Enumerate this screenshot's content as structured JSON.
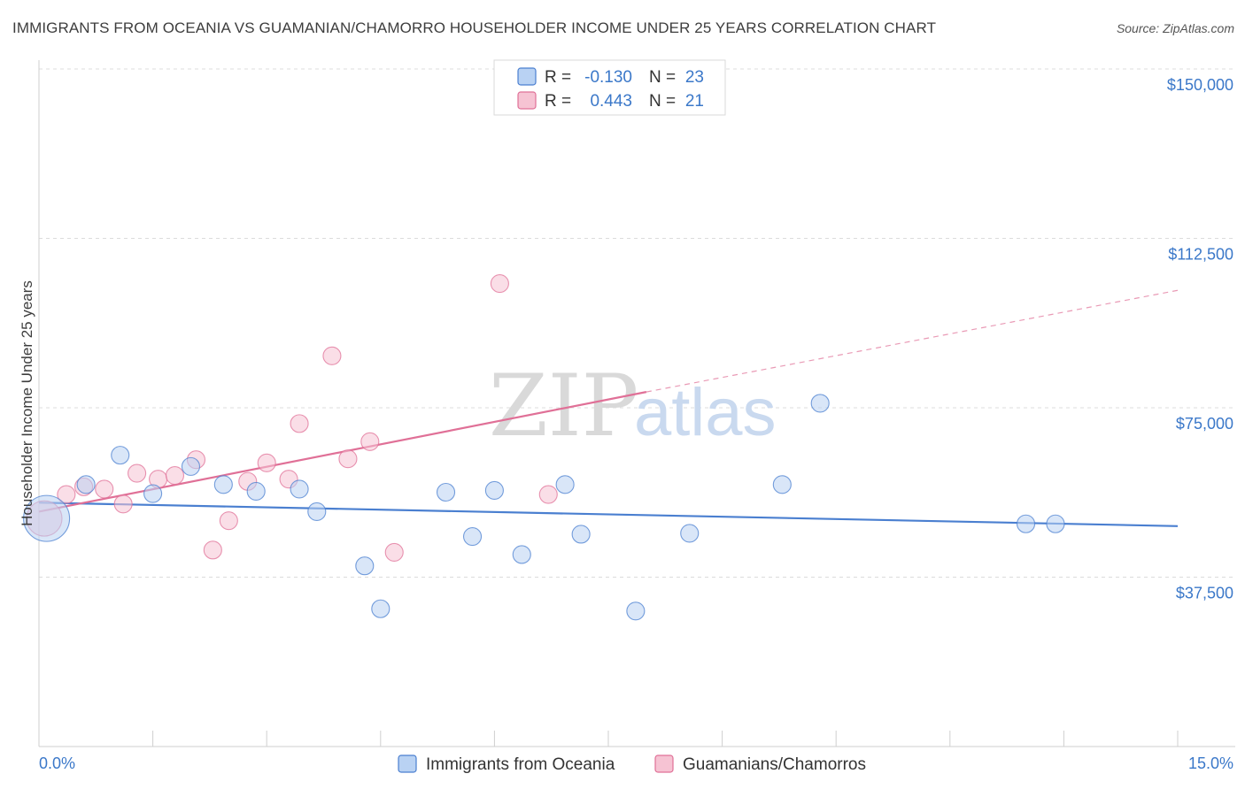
{
  "title": "IMMIGRANTS FROM OCEANIA VS GUAMANIAN/CHAMORRO HOUSEHOLDER INCOME UNDER 25 YEARS CORRELATION CHART",
  "source": "Source: ZipAtlas.com",
  "watermark": {
    "part1": "ZIP",
    "part2": "atlas"
  },
  "legend": {
    "rows": [
      {
        "r_label": "R =",
        "r_value": "-0.130",
        "n_label": "N =",
        "n_value": "23"
      },
      {
        "r_label": "R =",
        "r_value": "0.443",
        "n_label": "N =",
        "n_value": "21"
      }
    ]
  },
  "chart_data": {
    "type": "scatter",
    "ylabel": "Householder Income Under 25 years",
    "xlim": [
      0,
      15
    ],
    "ylim": [
      0,
      150000
    ],
    "x_tick_labels": [
      "0.0%",
      "15.0%"
    ],
    "y_ticks": [
      37500,
      75000,
      112500,
      150000
    ],
    "y_tick_labels": [
      "$37,500",
      "$75,000",
      "$112,500",
      "$150,000"
    ],
    "grid": true,
    "legend_position": "top-center",
    "series": [
      {
        "name": "Immigrants from Oceania",
        "color": "#4a7fd0",
        "fill": "#b9d2f3",
        "points": [
          [
            0.1,
            50500
          ],
          [
            0.62,
            58000
          ],
          [
            1.07,
            64500
          ],
          [
            1.5,
            56000
          ],
          [
            2.0,
            62000
          ],
          [
            2.43,
            58000
          ],
          [
            2.86,
            56500
          ],
          [
            3.43,
            57000
          ],
          [
            3.66,
            52000
          ],
          [
            4.29,
            40000
          ],
          [
            4.5,
            30500
          ],
          [
            5.36,
            56300
          ],
          [
            5.71,
            46500
          ],
          [
            6.0,
            56700
          ],
          [
            6.36,
            42500
          ],
          [
            6.93,
            58000
          ],
          [
            7.14,
            47000
          ],
          [
            7.86,
            30000
          ],
          [
            8.57,
            47200
          ],
          [
            9.79,
            58000
          ],
          [
            10.29,
            76000
          ],
          [
            13.0,
            49300
          ],
          [
            13.39,
            49300
          ]
        ],
        "sizes": [
          26,
          10,
          10,
          10,
          10,
          10,
          10,
          10,
          10,
          10,
          10,
          10,
          10,
          10,
          10,
          10,
          10,
          10,
          10,
          10,
          10,
          10,
          10
        ],
        "trend": {
          "x": [
            0.0,
            15.0
          ],
          "y": [
            54000,
            48800
          ]
        }
      },
      {
        "name": "Guamanians/Chamorros",
        "color": "#e07097",
        "fill": "#f6c3d3",
        "points": [
          [
            0.07,
            50500
          ],
          [
            0.36,
            55800
          ],
          [
            0.59,
            57500
          ],
          [
            0.86,
            57000
          ],
          [
            1.11,
            53700
          ],
          [
            1.29,
            60500
          ],
          [
            1.57,
            59200
          ],
          [
            1.79,
            60000
          ],
          [
            2.07,
            63500
          ],
          [
            2.5,
            50000
          ],
          [
            2.29,
            43500
          ],
          [
            2.75,
            58700
          ],
          [
            3.0,
            62800
          ],
          [
            3.29,
            59200
          ],
          [
            3.43,
            71500
          ],
          [
            3.86,
            86500
          ],
          [
            4.07,
            63700
          ],
          [
            4.36,
            67500
          ],
          [
            4.68,
            43000
          ],
          [
            6.07,
            102500
          ],
          [
            6.71,
            55800
          ]
        ],
        "sizes": [
          20,
          10,
          10,
          10,
          10,
          10,
          10,
          10,
          10,
          10,
          10,
          10,
          10,
          10,
          10,
          10,
          10,
          10,
          10,
          10,
          10
        ],
        "trend": {
          "x": [
            0.0,
            8.0
          ],
          "y": [
            52000,
            78500
          ]
        },
        "trend_dashed": {
          "x": [
            8.0,
            15.0
          ],
          "y": [
            78500,
            101000
          ]
        }
      }
    ]
  },
  "bottom_legend": {
    "items": [
      {
        "label": "Immigrants from Oceania",
        "fill": "#b9d2f3",
        "stroke": "#4a7fd0"
      },
      {
        "label": "Guamanians/Chamorros",
        "fill": "#f6c3d3",
        "stroke": "#e07097"
      }
    ]
  },
  "legend_swatches": [
    {
      "fill": "#b9d2f3",
      "stroke": "#4a7fd0"
    },
    {
      "fill": "#f6c3d3",
      "stroke": "#e07097"
    }
  ]
}
